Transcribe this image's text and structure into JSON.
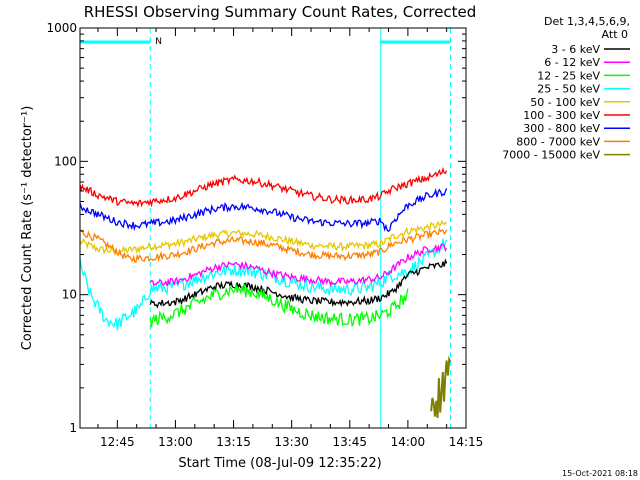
{
  "chart_data": {
    "type": "line",
    "title": "RHESSI Observing Summary Count Rates, Corrected",
    "xlabel": "Start Time (08-Jul-09 12:35:22)",
    "ylabel": "Corrected Count Rate (s⁻¹ detector⁻¹)",
    "y_scale": "log",
    "ylim": [
      1,
      1000
    ],
    "y_ticks": [
      "1",
      "10",
      "100",
      "1000"
    ],
    "x_range": [
      "12:35:22",
      "14:15:00"
    ],
    "x_ticks": [
      "12:45",
      "13:00",
      "13:15",
      "13:30",
      "13:45",
      "14:00",
      "14:15"
    ],
    "legend_header": [
      "Det 1,3,4,5,6,9,",
      "Att 0"
    ],
    "legend_position": "right",
    "timestamp": "15-Oct-2021 08:18",
    "flag_label": "N",
    "flag_segments": [
      [
        "12:35:22",
        "12:53:30"
      ],
      [
        "13:53:00",
        "14:11:00"
      ]
    ],
    "dashed_markers": [
      "12:53:30",
      "14:11:00"
    ],
    "solid_markers": [
      "12:35:22",
      "13:53:00"
    ],
    "series": [
      {
        "name": "3 - 6 keV",
        "color": "#000000",
        "points": [
          [
            "12:53:30",
            8.5
          ],
          [
            "13:00",
            8.8
          ],
          [
            "13:05",
            10
          ],
          [
            "13:10",
            11.5
          ],
          [
            "13:15",
            12
          ],
          [
            "13:20",
            11.5
          ],
          [
            "13:25",
            10.5
          ],
          [
            "13:30",
            9.5
          ],
          [
            "13:35",
            9
          ],
          [
            "13:40",
            8.8
          ],
          [
            "13:45",
            8.8
          ],
          [
            "13:50",
            9
          ],
          [
            "13:53",
            9.5
          ],
          [
            "13:56",
            10.5
          ],
          [
            "14:00",
            14
          ],
          [
            "14:05",
            16
          ],
          [
            "14:10",
            17
          ]
        ]
      },
      {
        "name": "6 - 12 keV",
        "color": "#ff00ff",
        "points": [
          [
            "12:53:30",
            12
          ],
          [
            "13:00",
            12.5
          ],
          [
            "13:05",
            14
          ],
          [
            "13:10",
            16
          ],
          [
            "13:15",
            17
          ],
          [
            "13:20",
            16
          ],
          [
            "13:25",
            14.5
          ],
          [
            "13:30",
            13.5
          ],
          [
            "13:35",
            13
          ],
          [
            "13:40",
            12.5
          ],
          [
            "13:45",
            12.5
          ],
          [
            "13:50",
            13
          ],
          [
            "13:53",
            13.5
          ],
          [
            "13:56",
            15.5
          ],
          [
            "14:00",
            19
          ],
          [
            "14:05",
            22
          ],
          [
            "14:10",
            23
          ]
        ]
      },
      {
        "name": "12 - 25 keV",
        "color": "#00ff00",
        "points": [
          [
            "12:53:30",
            6.3
          ],
          [
            "13:00",
            7.2
          ],
          [
            "13:05",
            8.5
          ],
          [
            "13:10",
            10
          ],
          [
            "13:15",
            11
          ],
          [
            "13:20",
            10.5
          ],
          [
            "13:25",
            9.2
          ],
          [
            "13:30",
            7.8
          ],
          [
            "13:35",
            7
          ],
          [
            "13:40",
            6.6
          ],
          [
            "13:45",
            6.5
          ],
          [
            "13:50",
            6.6
          ],
          [
            "13:53",
            7
          ],
          [
            "13:56",
            7.8
          ],
          [
            "14:00",
            10
          ]
        ]
      },
      {
        "name": "25 - 50 keV",
        "color": "#00ffff",
        "points": [
          [
            "12:35:22",
            17
          ],
          [
            "12:38",
            10
          ],
          [
            "12:42",
            6.5
          ],
          [
            "12:45",
            6
          ],
          [
            "12:48",
            7
          ],
          [
            "12:51",
            8
          ],
          [
            "12:53:30",
            11
          ],
          [
            "13:00",
            11.5
          ],
          [
            "13:05",
            13
          ],
          [
            "13:10",
            14.5
          ],
          [
            "13:15",
            15.5
          ],
          [
            "13:20",
            15
          ],
          [
            "13:25",
            13.8
          ],
          [
            "13:30",
            12.5
          ],
          [
            "13:35",
            11.5
          ],
          [
            "13:40",
            11
          ],
          [
            "13:45",
            11
          ],
          [
            "13:50",
            11.3
          ],
          [
            "13:53",
            12.5
          ],
          [
            "13:56",
            14
          ],
          [
            "14:00",
            15
          ],
          [
            "14:05",
            19
          ],
          [
            "14:10",
            25
          ]
        ]
      },
      {
        "name": "50 - 100 keV",
        "color": "#e6c800",
        "points": [
          [
            "12:35:22",
            25
          ],
          [
            "12:40",
            22
          ],
          [
            "12:45",
            21
          ],
          [
            "12:50",
            22
          ],
          [
            "12:53:30",
            23
          ],
          [
            "13:00",
            24
          ],
          [
            "13:05",
            26
          ],
          [
            "13:10",
            28
          ],
          [
            "13:15",
            29
          ],
          [
            "13:20",
            28.5
          ],
          [
            "13:25",
            27
          ],
          [
            "13:30",
            25
          ],
          [
            "13:35",
            23.5
          ],
          [
            "13:40",
            23
          ],
          [
            "13:45",
            23
          ],
          [
            "13:50",
            23.5
          ],
          [
            "13:53",
            24
          ],
          [
            "13:56",
            27
          ],
          [
            "14:00",
            30
          ],
          [
            "14:05",
            32
          ],
          [
            "14:10",
            34
          ]
        ]
      },
      {
        "name": "100 - 300 keV",
        "color": "#ff0000",
        "points": [
          [
            "12:35:22",
            65
          ],
          [
            "12:40",
            56
          ],
          [
            "12:45",
            50
          ],
          [
            "12:50",
            48
          ],
          [
            "12:53:30",
            50
          ],
          [
            "13:00",
            53
          ],
          [
            "13:05",
            60
          ],
          [
            "13:10",
            68
          ],
          [
            "13:15",
            73
          ],
          [
            "13:20",
            71
          ],
          [
            "13:25",
            66
          ],
          [
            "13:30",
            60
          ],
          [
            "13:35",
            55
          ],
          [
            "13:40",
            52
          ],
          [
            "13:45",
            51
          ],
          [
            "13:50",
            52
          ],
          [
            "13:53",
            55
          ],
          [
            "13:56",
            62
          ],
          [
            "14:00",
            68
          ],
          [
            "14:05",
            75
          ],
          [
            "14:10",
            85
          ]
        ]
      },
      {
        "name": "300 - 800 keV",
        "color": "#0000ff",
        "points": [
          [
            "12:35:22",
            46
          ],
          [
            "12:40",
            40
          ],
          [
            "12:45",
            35
          ],
          [
            "12:50",
            33
          ],
          [
            "12:53:30",
            34
          ],
          [
            "13:00",
            36
          ],
          [
            "13:05",
            40
          ],
          [
            "13:10",
            44
          ],
          [
            "13:15",
            46
          ],
          [
            "13:20",
            45
          ],
          [
            "13:25",
            42
          ],
          [
            "13:30",
            38
          ],
          [
            "13:35",
            35.5
          ],
          [
            "13:40",
            34.5
          ],
          [
            "13:45",
            34
          ],
          [
            "13:50",
            34.5
          ],
          [
            "13:53",
            36
          ],
          [
            "13:55",
            30
          ],
          [
            "13:56",
            35
          ],
          [
            "14:00",
            47
          ],
          [
            "14:05",
            55
          ],
          [
            "14:10",
            60
          ]
        ]
      },
      {
        "name": "800 - 7000 keV",
        "color": "#ff8000",
        "points": [
          [
            "12:35:22",
            30
          ],
          [
            "12:40",
            26
          ],
          [
            "12:45",
            21
          ],
          [
            "12:48",
            18.5
          ],
          [
            "12:53:30",
            19
          ],
          [
            "13:00",
            20
          ],
          [
            "13:05",
            22
          ],
          [
            "13:10",
            24.5
          ],
          [
            "13:15",
            25.5
          ],
          [
            "13:20",
            25
          ],
          [
            "13:25",
            23.5
          ],
          [
            "13:30",
            21.5
          ],
          [
            "13:35",
            20
          ],
          [
            "13:40",
            19.5
          ],
          [
            "13:45",
            19.5
          ],
          [
            "13:50",
            20
          ],
          [
            "13:53",
            21
          ],
          [
            "13:56",
            24
          ],
          [
            "14:00",
            26
          ],
          [
            "14:05",
            28
          ],
          [
            "14:10",
            30
          ]
        ]
      },
      {
        "name": "7000 - 15000 keV",
        "color": "#808000",
        "points": [
          [
            "14:06",
            1.6
          ],
          [
            "14:07",
            1.8
          ],
          [
            "14:08",
            1.7
          ],
          [
            "14:09",
            2
          ],
          [
            "14:10",
            2.8
          ],
          [
            "14:11",
            2.5
          ]
        ]
      }
    ]
  }
}
